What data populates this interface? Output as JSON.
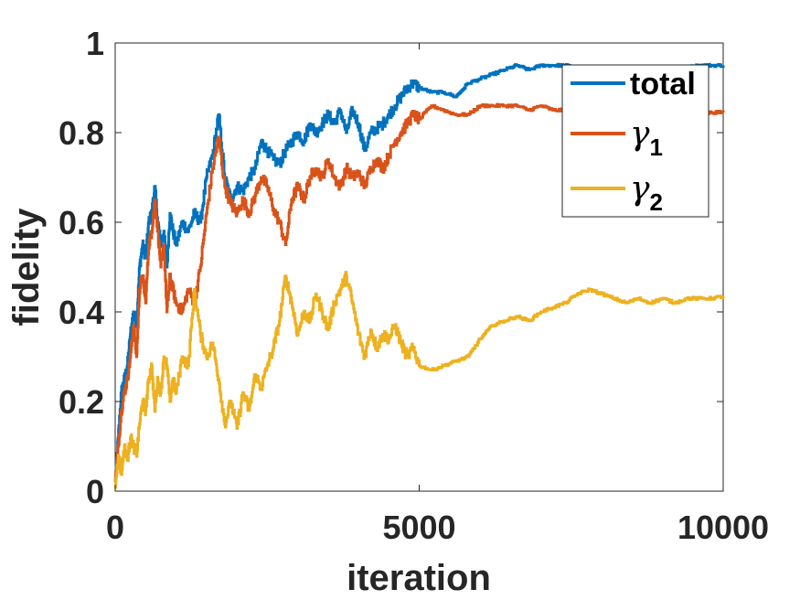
{
  "chart_data": {
    "type": "line",
    "title": "",
    "xlabel": "iteration",
    "ylabel": "fidelity",
    "xlim": [
      0,
      10000
    ],
    "ylim": [
      0,
      1
    ],
    "xticks": [
      0,
      5000,
      10000
    ],
    "yticks": [
      0,
      0.2,
      0.4,
      0.6,
      0.8,
      1
    ],
    "xtick_labels": [
      "0",
      "5000",
      "10000"
    ],
    "ytick_labels": [
      "0",
      "0.2",
      "0.4",
      "0.6",
      "0.8",
      "1"
    ],
    "grid": false,
    "legend_position": "top-right",
    "series": [
      {
        "name": "total",
        "legend_label": "total",
        "color": "#0072BD",
        "x": [
          0,
          50,
          100,
          150,
          200,
          250,
          300,
          350,
          400,
          450,
          500,
          550,
          600,
          650,
          700,
          750,
          800,
          850,
          900,
          950,
          1000,
          1100,
          1200,
          1300,
          1400,
          1500,
          1600,
          1700,
          1800,
          1900,
          2000,
          2100,
          2200,
          2300,
          2400,
          2500,
          2600,
          2700,
          2800,
          2900,
          3000,
          3100,
          3200,
          3300,
          3400,
          3500,
          3600,
          3700,
          3800,
          3900,
          4000,
          4100,
          4200,
          4300,
          4400,
          4500,
          4600,
          4700,
          4800,
          4900,
          5000,
          5200,
          5400,
          5600,
          5800,
          6000,
          6200,
          6400,
          6600,
          6800,
          7000,
          7200,
          7400,
          7600,
          7800,
          8000,
          8200,
          8400,
          8600,
          8800,
          9000,
          9200,
          9400,
          9600,
          9800,
          10000
        ],
        "y": [
          0.02,
          0.12,
          0.22,
          0.25,
          0.28,
          0.35,
          0.4,
          0.37,
          0.5,
          0.55,
          0.52,
          0.6,
          0.62,
          0.68,
          0.6,
          0.55,
          0.58,
          0.5,
          0.62,
          0.58,
          0.55,
          0.6,
          0.58,
          0.62,
          0.6,
          0.7,
          0.75,
          0.84,
          0.7,
          0.65,
          0.68,
          0.67,
          0.7,
          0.72,
          0.78,
          0.76,
          0.74,
          0.73,
          0.76,
          0.78,
          0.8,
          0.78,
          0.82,
          0.8,
          0.82,
          0.84,
          0.82,
          0.85,
          0.8,
          0.85,
          0.82,
          0.76,
          0.8,
          0.81,
          0.82,
          0.84,
          0.86,
          0.88,
          0.9,
          0.91,
          0.9,
          0.89,
          0.89,
          0.88,
          0.91,
          0.92,
          0.93,
          0.94,
          0.95,
          0.94,
          0.95,
          0.95,
          0.95,
          0.945,
          0.94,
          0.94,
          0.945,
          0.94,
          0.945,
          0.94,
          0.94,
          0.945,
          0.945,
          0.95,
          0.95,
          0.95
        ]
      },
      {
        "name": "γ1",
        "legend_label": "γ",
        "legend_subscript": "1",
        "color": "#D95319",
        "x": [
          0,
          50,
          100,
          150,
          200,
          250,
          300,
          350,
          400,
          450,
          500,
          550,
          600,
          650,
          700,
          750,
          800,
          850,
          900,
          950,
          1000,
          1100,
          1200,
          1300,
          1400,
          1500,
          1600,
          1700,
          1800,
          1900,
          2000,
          2100,
          2200,
          2300,
          2400,
          2500,
          2600,
          2700,
          2800,
          2900,
          3000,
          3100,
          3200,
          3300,
          3400,
          3500,
          3600,
          3700,
          3800,
          3900,
          4000,
          4100,
          4200,
          4300,
          4400,
          4500,
          4600,
          4700,
          4800,
          4900,
          5000,
          5200,
          5400,
          5600,
          5800,
          6000,
          6200,
          6400,
          6600,
          6800,
          7000,
          7200,
          7400,
          7600,
          7800,
          8000,
          8200,
          8400,
          8600,
          8800,
          9000,
          9200,
          9400,
          9600,
          9800,
          10000
        ],
        "y": [
          0.02,
          0.1,
          0.18,
          0.22,
          0.25,
          0.3,
          0.37,
          0.3,
          0.45,
          0.48,
          0.42,
          0.55,
          0.58,
          0.65,
          0.58,
          0.5,
          0.55,
          0.4,
          0.48,
          0.45,
          0.42,
          0.4,
          0.45,
          0.42,
          0.5,
          0.62,
          0.72,
          0.79,
          0.68,
          0.64,
          0.62,
          0.65,
          0.62,
          0.66,
          0.7,
          0.68,
          0.63,
          0.6,
          0.55,
          0.65,
          0.68,
          0.65,
          0.7,
          0.72,
          0.7,
          0.74,
          0.7,
          0.68,
          0.72,
          0.7,
          0.71,
          0.68,
          0.72,
          0.74,
          0.72,
          0.75,
          0.78,
          0.8,
          0.82,
          0.84,
          0.83,
          0.86,
          0.85,
          0.84,
          0.84,
          0.86,
          0.86,
          0.86,
          0.86,
          0.85,
          0.86,
          0.85,
          0.85,
          0.85,
          0.83,
          0.83,
          0.84,
          0.83,
          0.84,
          0.84,
          0.85,
          0.84,
          0.845,
          0.84,
          0.845,
          0.845
        ]
      },
      {
        "name": "γ2",
        "legend_label": "γ",
        "legend_subscript": "2",
        "color": "#EDB120",
        "x": [
          0,
          50,
          100,
          150,
          200,
          250,
          300,
          350,
          400,
          450,
          500,
          550,
          600,
          650,
          700,
          750,
          800,
          850,
          900,
          950,
          1000,
          1100,
          1200,
          1300,
          1400,
          1500,
          1600,
          1700,
          1800,
          1900,
          2000,
          2100,
          2200,
          2300,
          2400,
          2500,
          2600,
          2700,
          2800,
          2900,
          3000,
          3100,
          3200,
          3300,
          3400,
          3500,
          3600,
          3700,
          3800,
          3900,
          4000,
          4100,
          4200,
          4300,
          4400,
          4500,
          4600,
          4700,
          4800,
          4900,
          5000,
          5200,
          5400,
          5600,
          5800,
          6000,
          6200,
          6400,
          6600,
          6800,
          7000,
          7200,
          7400,
          7600,
          7800,
          8000,
          8200,
          8400,
          8600,
          8800,
          9000,
          9200,
          9400,
          9600,
          9800,
          10000
        ],
        "y": [
          0.01,
          0.08,
          0.04,
          0.1,
          0.07,
          0.12,
          0.1,
          0.08,
          0.15,
          0.2,
          0.18,
          0.25,
          0.28,
          0.18,
          0.25,
          0.22,
          0.3,
          0.28,
          0.2,
          0.25,
          0.22,
          0.3,
          0.28,
          0.45,
          0.35,
          0.3,
          0.33,
          0.25,
          0.15,
          0.2,
          0.14,
          0.22,
          0.18,
          0.26,
          0.23,
          0.28,
          0.32,
          0.38,
          0.48,
          0.42,
          0.35,
          0.4,
          0.38,
          0.44,
          0.4,
          0.36,
          0.42,
          0.45,
          0.48,
          0.42,
          0.35,
          0.3,
          0.36,
          0.32,
          0.35,
          0.34,
          0.37,
          0.33,
          0.3,
          0.32,
          0.28,
          0.27,
          0.28,
          0.29,
          0.3,
          0.34,
          0.37,
          0.38,
          0.39,
          0.38,
          0.4,
          0.41,
          0.42,
          0.44,
          0.45,
          0.44,
          0.43,
          0.42,
          0.43,
          0.42,
          0.43,
          0.42,
          0.43,
          0.43,
          0.43,
          0.435
        ]
      }
    ]
  }
}
